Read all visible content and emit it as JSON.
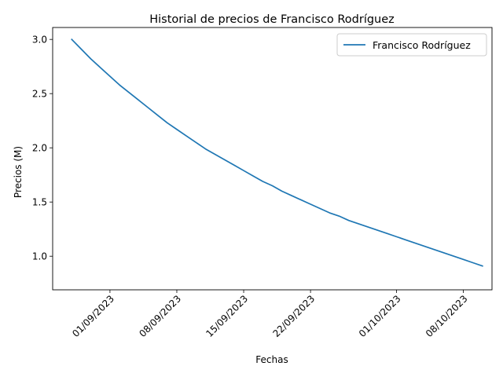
{
  "chart_data": {
    "type": "line",
    "title": "Historial de precios de Francisco Rodríguez",
    "xlabel": "Fechas",
    "ylabel": "Precios (M)",
    "x_ticks": [
      "01/09/2023",
      "08/09/2023",
      "15/09/2023",
      "22/09/2023",
      "01/10/2023",
      "08/10/2023"
    ],
    "y_ticks": [
      "1.0",
      "1.5",
      "2.0",
      "2.5",
      "3.0"
    ],
    "xlim": [
      "2023-08-26",
      "2023-10-11"
    ],
    "ylim": [
      0.69,
      3.11
    ],
    "legend": "top-right",
    "grid": false,
    "series": [
      {
        "name": "Francisco Rodríguez",
        "color": "#1f77b4",
        "x": [
          "2023-08-28",
          "2023-08-29",
          "2023-08-30",
          "2023-08-31",
          "2023-09-01",
          "2023-09-02",
          "2023-09-03",
          "2023-09-04",
          "2023-09-05",
          "2023-09-06",
          "2023-09-07",
          "2023-09-08",
          "2023-09-09",
          "2023-09-10",
          "2023-09-11",
          "2023-09-12",
          "2023-09-13",
          "2023-09-14",
          "2023-09-15",
          "2023-09-16",
          "2023-09-17",
          "2023-09-18",
          "2023-09-19",
          "2023-09-20",
          "2023-09-21",
          "2023-09-22",
          "2023-09-23",
          "2023-09-24",
          "2023-09-25",
          "2023-09-26",
          "2023-09-27",
          "2023-09-28",
          "2023-09-29",
          "2023-09-30",
          "2023-10-01",
          "2023-10-02",
          "2023-10-03",
          "2023-10-04",
          "2023-10-05",
          "2023-10-06",
          "2023-10-07",
          "2023-10-08",
          "2023-10-09",
          "2023-10-10"
        ],
        "y": [
          3.0,
          2.91,
          2.82,
          2.74,
          2.66,
          2.58,
          2.51,
          2.44,
          2.37,
          2.3,
          2.23,
          2.17,
          2.11,
          2.05,
          1.99,
          1.94,
          1.89,
          1.84,
          1.79,
          1.74,
          1.69,
          1.65,
          1.6,
          1.56,
          1.52,
          1.48,
          1.44,
          1.4,
          1.37,
          1.33,
          1.3,
          1.27,
          1.24,
          1.21,
          1.18,
          1.15,
          1.12,
          1.09,
          1.06,
          1.03,
          1.0,
          0.97,
          0.94,
          0.91
        ]
      }
    ]
  }
}
